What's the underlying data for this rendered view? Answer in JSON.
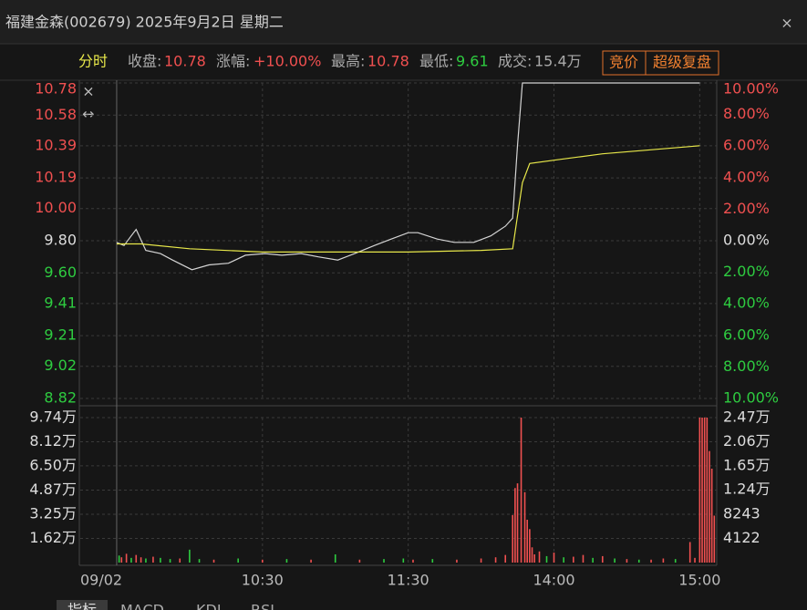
{
  "header": {
    "title": "福建金森(002679) 2025年9月2日 星期二",
    "close": "×"
  },
  "info": {
    "mode": "分时",
    "close_label": "收盘:",
    "close": 10.78,
    "change_label": "涨幅:",
    "change": "+10.00%",
    "high_label": "最高:",
    "high": 10.78,
    "low_label": "最低:",
    "low": 9.61,
    "volume_label": "成交:",
    "volume": "15.4万",
    "buttons": [
      "竞价",
      "超级复盘"
    ]
  },
  "tools": [
    "×",
    "↔"
  ],
  "chart_data": [
    {
      "type": "line",
      "xlim": [
        -15,
        247
      ],
      "ylim": [
        8.82,
        10.78
      ],
      "yticks": [
        10.78,
        10.58,
        10.39,
        10.19,
        {
          "value": 10,
          "label": "10.00"
        },
        {
          "value": 9.8,
          "label": "9.80"
        },
        {
          "value": 9.6,
          "label": "9.60"
        },
        9.41,
        9.21,
        9.02,
        8.82
      ],
      "y2lim": [
        -10,
        10
      ],
      "y2ticks": [
        {
          "value": 10,
          "label": "10.00%"
        },
        {
          "value": 8,
          "label": "8.00%"
        },
        {
          "value": 6,
          "label": "6.00%"
        },
        {
          "value": 4,
          "label": "4.00%"
        },
        {
          "value": 2,
          "label": "2.00%"
        },
        {
          "value": 0,
          "label": "0.00%"
        },
        {
          "value": -2,
          "label": "2.00%"
        },
        {
          "value": -4,
          "label": "4.00%"
        },
        {
          "value": -6,
          "label": "6.00%"
        },
        {
          "value": -8,
          "label": "8.00%"
        },
        {
          "value": -10,
          "label": "10.00%"
        }
      ],
      "up_color": "#f05050",
      "down_color": "#2ecc40",
      "flat_color": "#dddddd",
      "grid": true,
      "series": [
        {
          "color": "#d4d4d4",
          "x": [
            0,
            3,
            6,
            8,
            12,
            18,
            23,
            31,
            38,
            46,
            53,
            61,
            68,
            76,
            83,
            91,
            98,
            106,
            113,
            120,
            124,
            132,
            139,
            147,
            154,
            160,
            163,
            165,
            167,
            240
          ],
          "values": [
            9.79,
            9.77,
            9.83,
            9.87,
            9.74,
            9.72,
            9.68,
            9.62,
            9.65,
            9.66,
            9.71,
            9.72,
            9.71,
            9.72,
            9.7,
            9.68,
            9.72,
            9.77,
            9.81,
            9.85,
            9.85,
            9.81,
            9.79,
            9.79,
            9.83,
            9.89,
            9.94,
            10.39,
            10.78,
            10.78
          ]
        },
        {
          "color": "#e8e84a",
          "x": [
            0,
            10,
            30,
            60,
            90,
            120,
            150,
            163,
            167,
            170,
            180,
            200,
            240
          ],
          "values": [
            9.78,
            9.78,
            9.75,
            9.73,
            9.73,
            9.73,
            9.74,
            9.75,
            10.16,
            10.28,
            10.3,
            10.34,
            10.39
          ]
        }
      ]
    },
    {
      "type": "bar",
      "xlim": [
        -15,
        247
      ],
      "xticks": [
        {
          "value": -15,
          "label": "09/02"
        },
        {
          "value": 60,
          "label": "10:30"
        },
        {
          "value": 120,
          "label": "11:30"
        },
        {
          "value": 180,
          "label": "14:00"
        },
        {
          "value": 240,
          "label": "15:00"
        }
      ],
      "ylim": [
        0,
        97400
      ],
      "yticks": [
        {
          "value": 97400,
          "label": "9.74万"
        },
        {
          "value": 81200,
          "label": "8.12万"
        },
        {
          "value": 65000,
          "label": "6.50万"
        },
        {
          "value": 48700,
          "label": "4.87万"
        },
        {
          "value": 32500,
          "label": "3.25万"
        },
        {
          "value": 16200,
          "label": "1.62万"
        }
      ],
      "y2lim": [
        0,
        24700
      ],
      "y2ticks": [
        {
          "value": 24700,
          "label": "2.47万"
        },
        {
          "value": 20600,
          "label": "2.06万"
        },
        {
          "value": 16500,
          "label": "1.65万"
        },
        {
          "value": 12400,
          "label": "1.24万"
        },
        8243,
        4122
      ],
      "grid": true,
      "series": [
        {
          "axis": "y2",
          "x": [
            1,
            2,
            4,
            6,
            8,
            10,
            12,
            15,
            18,
            22,
            26,
            30,
            34,
            40,
            50,
            60,
            70,
            80,
            90,
            100,
            110,
            118,
            122,
            130,
            140,
            150,
            156,
            160,
            163,
            164,
            165,
            166.5,
            168,
            169,
            170,
            171,
            172,
            174,
            177,
            180,
            184,
            188,
            192,
            196,
            200,
            205,
            210,
            215,
            220,
            225,
            230,
            236,
            238,
            240,
            241,
            242,
            243,
            244,
            245,
            246
          ],
          "values": [
            1200,
            900,
            1500,
            800,
            1300,
            900,
            700,
            1000,
            800,
            600,
            700,
            2200,
            600,
            500,
            700,
            500,
            600,
            500,
            1400,
            500,
            600,
            700,
            500,
            600,
            500,
            700,
            900,
            1300,
            8100,
            12700,
            13500,
            24700,
            12000,
            7300,
            5700,
            2600,
            1400,
            1900,
            1100,
            1700,
            900,
            1000,
            1300,
            800,
            1100,
            700,
            600,
            500,
            500,
            700,
            600,
            3500,
            800,
            24700,
            24700,
            24700,
            24700,
            19000,
            16000,
            8000
          ],
          "colors": [
            "#2ecc40",
            "#f05050",
            "#f05050",
            "#2ecc40",
            "#f05050",
            "#f05050",
            "#2ecc40",
            "#f05050",
            "#2ecc40",
            "#2ecc40",
            "#f05050",
            "#2ecc40",
            "#2ecc40",
            "#f05050",
            "#2ecc40",
            "#f05050",
            "#2ecc40",
            "#f05050",
            "#2ecc40",
            "#f05050",
            "#2ecc40",
            "#2ecc40",
            "#f05050",
            "#2ecc40",
            "#f05050",
            "#f05050",
            "#f05050",
            "#f05050",
            "#f05050",
            "#f05050",
            "#f05050",
            "#f05050",
            "#f05050",
            "#f05050",
            "#f05050",
            "#f05050",
            "#f05050",
            "#f05050",
            "#2ecc40",
            "#f05050",
            "#2ecc40",
            "#f05050",
            "#f05050",
            "#2ecc40",
            "#f05050",
            "#2ecc40",
            "#f05050",
            "#2ecc40",
            "#f05050",
            "#f05050",
            "#2ecc40",
            "#f05050",
            "#f05050",
            "#f05050",
            "#f05050",
            "#f05050",
            "#f05050",
            "#f05050",
            "#f05050",
            "#f05050"
          ]
        }
      ]
    }
  ],
  "tabs": [
    "指标",
    "MACD",
    "KDJ",
    "RSI"
  ]
}
